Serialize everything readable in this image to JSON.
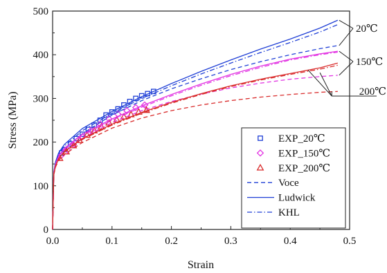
{
  "chart_data": {
    "type": "line",
    "title": "",
    "xlabel": "Strain",
    "ylabel": "Stress (MPa)",
    "xlim": [
      0,
      0.5
    ],
    "ylim": [
      0,
      500
    ],
    "x_ticks": [
      "0.0",
      "0.1",
      "0.2",
      "0.3",
      "0.4",
      "0.5"
    ],
    "y_ticks": [
      "0",
      "100",
      "200",
      "300",
      "400",
      "500"
    ],
    "grid": false,
    "legend_position": "bottom-right",
    "legend": [
      {
        "label": "EXP_20℃",
        "kind": "marker",
        "marker": "square",
        "color": "#1f3fd6"
      },
      {
        "label": "EXP_150℃",
        "kind": "marker",
        "marker": "diamond",
        "color": "#e233e2"
      },
      {
        "label": "EXP_200℃",
        "kind": "marker",
        "marker": "triangle",
        "color": "#d92b2b"
      },
      {
        "label": "Voce",
        "kind": "line",
        "dash": "dashed",
        "color": "#1f3fd6"
      },
      {
        "label": "Ludwick",
        "kind": "line",
        "dash": "solid",
        "color": "#1f3fd6"
      },
      {
        "label": "KHL",
        "kind": "line",
        "dash": "dashdot",
        "color": "#1f3fd6"
      }
    ],
    "temperature_labels": [
      "20℃",
      "150℃",
      "200℃"
    ],
    "series": [
      {
        "name": "EXP_20℃",
        "style": "marker",
        "marker": "square",
        "color": "#1f3fd6",
        "points": [
          [
            0.015,
            175
          ],
          [
            0.02,
            183
          ],
          [
            0.03,
            196
          ],
          [
            0.04,
            208
          ],
          [
            0.05,
            218
          ],
          [
            0.06,
            229
          ],
          [
            0.07,
            239
          ],
          [
            0.08,
            250
          ],
          [
            0.09,
            262
          ],
          [
            0.1,
            269
          ],
          [
            0.11,
            276
          ],
          [
            0.12,
            285
          ],
          [
            0.13,
            293
          ],
          [
            0.14,
            300
          ],
          [
            0.15,
            306
          ],
          [
            0.16,
            311
          ],
          [
            0.17,
            316
          ]
        ]
      },
      {
        "name": "EXP_150℃",
        "style": "marker",
        "marker": "diamond",
        "color": "#e233e2",
        "points": [
          [
            0.015,
            170
          ],
          [
            0.025,
            182
          ],
          [
            0.035,
            194
          ],
          [
            0.05,
            212
          ],
          [
            0.065,
            227
          ],
          [
            0.08,
            241
          ],
          [
            0.095,
            253
          ],
          [
            0.11,
            264
          ],
          [
            0.125,
            272
          ],
          [
            0.14,
            279
          ],
          [
            0.155,
            285
          ]
        ]
      },
      {
        "name": "EXP_200℃",
        "style": "marker",
        "marker": "triangle",
        "color": "#d92b2b",
        "points": [
          [
            0.012,
            163
          ],
          [
            0.023,
            178
          ],
          [
            0.035,
            192
          ],
          [
            0.045,
            204
          ],
          [
            0.058,
            216
          ],
          [
            0.07,
            226
          ],
          [
            0.082,
            235
          ],
          [
            0.095,
            244
          ],
          [
            0.108,
            251
          ],
          [
            0.12,
            258
          ],
          [
            0.132,
            263
          ],
          [
            0.145,
            269
          ],
          [
            0.158,
            273
          ]
        ]
      },
      {
        "name": "Voce",
        "group": "20℃",
        "style": "line",
        "dash": "dashed",
        "color": "#1f3fd6",
        "points": [
          [
            0,
            0
          ],
          [
            0.002,
            130
          ],
          [
            0.005,
            150
          ],
          [
            0.01,
            168
          ],
          [
            0.02,
            185
          ],
          [
            0.05,
            219
          ],
          [
            0.1,
            262
          ],
          [
            0.15,
            295
          ],
          [
            0.2,
            322
          ],
          [
            0.25,
            345
          ],
          [
            0.3,
            366
          ],
          [
            0.35,
            384
          ],
          [
            0.4,
            400
          ],
          [
            0.45,
            414
          ],
          [
            0.48,
            421
          ]
        ]
      },
      {
        "name": "Ludwick",
        "group": "20℃",
        "style": "line",
        "dash": "solid",
        "color": "#1f3fd6",
        "points": [
          [
            0,
            0
          ],
          [
            0.002,
            132
          ],
          [
            0.005,
            155
          ],
          [
            0.01,
            175
          ],
          [
            0.02,
            195
          ],
          [
            0.05,
            231
          ],
          [
            0.1,
            270
          ],
          [
            0.15,
            304
          ],
          [
            0.2,
            334
          ],
          [
            0.25,
            362
          ],
          [
            0.3,
            388
          ],
          [
            0.35,
            413
          ],
          [
            0.4,
            436
          ],
          [
            0.45,
            461
          ],
          [
            0.48,
            479
          ]
        ]
      },
      {
        "name": "KHL",
        "group": "20℃",
        "style": "line",
        "dash": "dashdot",
        "color": "#1f3fd6",
        "points": [
          [
            0,
            0
          ],
          [
            0.002,
            131
          ],
          [
            0.005,
            153
          ],
          [
            0.01,
            172
          ],
          [
            0.02,
            191
          ],
          [
            0.05,
            226
          ],
          [
            0.1,
            266
          ],
          [
            0.15,
            300
          ],
          [
            0.2,
            329
          ],
          [
            0.25,
            356
          ],
          [
            0.3,
            381
          ],
          [
            0.35,
            405
          ],
          [
            0.4,
            428
          ],
          [
            0.45,
            452
          ],
          [
            0.48,
            469
          ]
        ]
      },
      {
        "name": "Voce",
        "group": "150℃",
        "style": "line",
        "dash": "dashed",
        "color": "#e233e2",
        "points": [
          [
            0,
            0
          ],
          [
            0.002,
            128
          ],
          [
            0.005,
            147
          ],
          [
            0.01,
            163
          ],
          [
            0.02,
            179
          ],
          [
            0.05,
            209
          ],
          [
            0.1,
            245
          ],
          [
            0.15,
            272
          ],
          [
            0.2,
            293
          ],
          [
            0.25,
            310
          ],
          [
            0.3,
            324
          ],
          [
            0.35,
            335
          ],
          [
            0.4,
            344
          ],
          [
            0.45,
            350
          ],
          [
            0.48,
            353
          ]
        ]
      },
      {
        "name": "Ludwick",
        "group": "150℃",
        "style": "line",
        "dash": "solid",
        "color": "#e233e2",
        "points": [
          [
            0,
            0
          ],
          [
            0.002,
            130
          ],
          [
            0.005,
            150
          ],
          [
            0.01,
            168
          ],
          [
            0.02,
            186
          ],
          [
            0.05,
            218
          ],
          [
            0.1,
            253
          ],
          [
            0.15,
            283
          ],
          [
            0.2,
            309
          ],
          [
            0.25,
            333
          ],
          [
            0.3,
            355
          ],
          [
            0.35,
            374
          ],
          [
            0.4,
            390
          ],
          [
            0.45,
            402
          ],
          [
            0.48,
            408
          ]
        ]
      },
      {
        "name": "KHL",
        "group": "150℃",
        "style": "line",
        "dash": "dashdot",
        "color": "#e233e2",
        "points": [
          [
            0,
            0
          ],
          [
            0.002,
            129
          ],
          [
            0.005,
            149
          ],
          [
            0.01,
            166
          ],
          [
            0.02,
            184
          ],
          [
            0.05,
            215
          ],
          [
            0.1,
            250
          ],
          [
            0.15,
            280
          ],
          [
            0.2,
            306
          ],
          [
            0.25,
            330
          ],
          [
            0.3,
            352
          ],
          [
            0.35,
            371
          ],
          [
            0.4,
            388
          ],
          [
            0.45,
            400
          ],
          [
            0.48,
            406
          ]
        ]
      },
      {
        "name": "Voce",
        "group": "200℃",
        "style": "line",
        "dash": "dashed",
        "color": "#d92b2b",
        "points": [
          [
            0,
            0
          ],
          [
            0.002,
            125
          ],
          [
            0.005,
            143
          ],
          [
            0.01,
            158
          ],
          [
            0.02,
            172
          ],
          [
            0.05,
            199
          ],
          [
            0.1,
            232
          ],
          [
            0.15,
            255
          ],
          [
            0.2,
            272
          ],
          [
            0.25,
            285
          ],
          [
            0.3,
            295
          ],
          [
            0.35,
            303
          ],
          [
            0.4,
            309
          ],
          [
            0.45,
            314
          ],
          [
            0.48,
            316
          ]
        ]
      },
      {
        "name": "Ludwick",
        "group": "200℃",
        "style": "line",
        "dash": "solid",
        "color": "#d92b2b",
        "points": [
          [
            0,
            0
          ],
          [
            0.002,
            127
          ],
          [
            0.005,
            146
          ],
          [
            0.01,
            162
          ],
          [
            0.02,
            179
          ],
          [
            0.05,
            208
          ],
          [
            0.1,
            241
          ],
          [
            0.15,
            268
          ],
          [
            0.2,
            291
          ],
          [
            0.25,
            311
          ],
          [
            0.3,
            329
          ],
          [
            0.35,
            344
          ],
          [
            0.4,
            357
          ],
          [
            0.45,
            370
          ],
          [
            0.48,
            381
          ]
        ]
      },
      {
        "name": "KHL",
        "group": "200℃",
        "style": "line",
        "dash": "dashdot",
        "color": "#d92b2b",
        "points": [
          [
            0,
            0
          ],
          [
            0.002,
            126
          ],
          [
            0.005,
            145
          ],
          [
            0.01,
            161
          ],
          [
            0.02,
            177
          ],
          [
            0.05,
            206
          ],
          [
            0.1,
            239
          ],
          [
            0.15,
            266
          ],
          [
            0.2,
            289
          ],
          [
            0.25,
            309
          ],
          [
            0.3,
            327
          ],
          [
            0.35,
            342
          ],
          [
            0.4,
            355
          ],
          [
            0.45,
            367
          ],
          [
            0.48,
            376
          ]
        ]
      }
    ]
  }
}
